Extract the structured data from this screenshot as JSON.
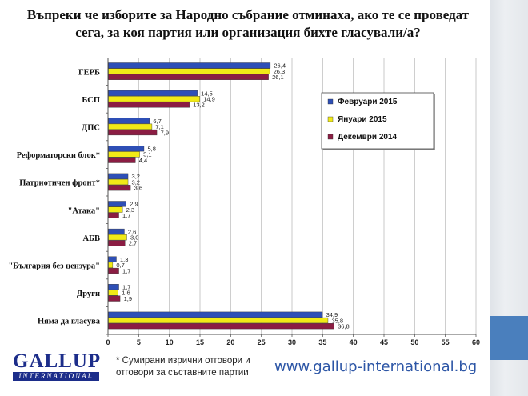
{
  "title": "Въпреки че изборите за Народно събрание отминаха, ако те се проведат сега, за коя партия или организация бихте гласували/а?",
  "chart_data": {
    "type": "bar",
    "orientation": "horizontal",
    "categories": [
      "ГЕРБ",
      "БСП",
      "ДПС",
      "Реформаторски блок*",
      "Патриотичен фронт*",
      "\"Атака\"",
      "АБВ",
      "\"България без цензура\"",
      "Други",
      "Няма да гласува"
    ],
    "series": [
      {
        "name": "Февруари 2015",
        "color": "#2e4fb6",
        "values": [
          26.4,
          14.5,
          6.7,
          5.8,
          3.2,
          2.9,
          2.6,
          1.3,
          1.7,
          34.9
        ]
      },
      {
        "name": "Януари 2015",
        "color": "#f1ea17",
        "values": [
          26.3,
          14.9,
          7.1,
          5.1,
          3.2,
          2.3,
          3.0,
          0.7,
          1.6,
          35.8
        ]
      },
      {
        "name": "Декември 2014",
        "color": "#8b1d43",
        "values": [
          26.1,
          13.2,
          7.9,
          4.4,
          3.6,
          1.7,
          2.7,
          1.7,
          1.9,
          36.8
        ]
      }
    ],
    "value_labels": [
      [
        "26,4",
        "14,5",
        "6,7",
        "5,8",
        "3,2",
        "2,9",
        "2,6",
        "1,3",
        "1,7",
        "34,9"
      ],
      [
        "26,3",
        "14,9",
        "7,1",
        "5,1",
        "3,2",
        "2,3",
        "3,0",
        "0,7",
        "1,6",
        "35,8"
      ],
      [
        "26,1",
        "13,2",
        "7,9",
        "4,4",
        "3,6",
        "1,7",
        "2,7",
        "1,7",
        "1,9",
        "36,8"
      ]
    ],
    "x_ticks": [
      "0",
      "5",
      "10",
      "15",
      "20",
      "25",
      "30",
      "35",
      "40",
      "45",
      "50",
      "55",
      "60"
    ],
    "xlim": [
      0,
      60
    ],
    "grid": true,
    "legend_position": "right"
  },
  "footnote": "* Сумирани изрични отговори и отговори за съставните партии",
  "website": "www.gallup-international.bg",
  "logo": {
    "word": "GALLUP",
    "band": "INTERNATIONAL"
  },
  "colors": {
    "accent": "#4a7fbd",
    "logo": "#1c2d8a",
    "website": "#2d56a6"
  }
}
